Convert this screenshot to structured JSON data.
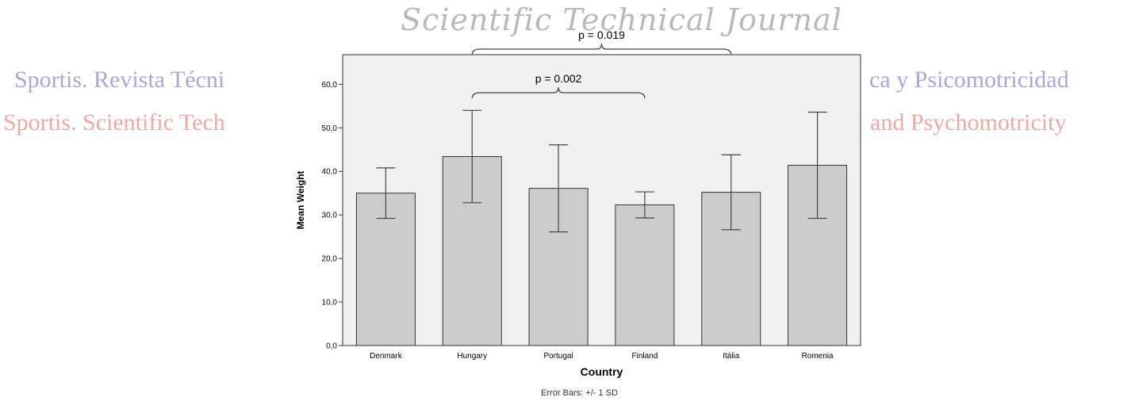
{
  "watermarks": {
    "top": "Scientific Technical Journal",
    "es_left": "Sportis. Revista Técni",
    "es_right": "ca y Psicomotricidad",
    "en_left": "Sportis. Scientific Tech",
    "en_right": "and Psychomotricity"
  },
  "chart_data": {
    "type": "bar",
    "categories": [
      "Denmark",
      "Hungary",
      "Portugal",
      "Finland",
      "Itália",
      "Romenia"
    ],
    "values": [
      35.0,
      43.4,
      36.1,
      32.3,
      35.2,
      41.4
    ],
    "error_bars": {
      "label": "Error Bars: +/- 1 SD",
      "sd": [
        5.8,
        10.6,
        10.0,
        3.0,
        8.6,
        12.2
      ]
    },
    "xlabel": "Country",
    "ylabel": "Mean Weight",
    "ylim": [
      0,
      66.8
    ],
    "yticks": [
      0,
      10,
      20,
      30,
      40,
      50,
      60
    ],
    "ytick_labels": [
      "0,0",
      "10,0",
      "20,0",
      "30,0",
      "40,0",
      "50,0",
      "60,0"
    ],
    "grid": false,
    "annotations": [
      {
        "text": "p = 0.019",
        "from": "Hungary",
        "to": "Itália",
        "tier": 2
      },
      {
        "text": "p = 0.002",
        "from": "Hungary",
        "to": "Finland",
        "tier": 1
      }
    ],
    "colors": {
      "bar": "#cccccc",
      "plot_bg": "#f0f0f0",
      "stroke": "#333333"
    }
  }
}
